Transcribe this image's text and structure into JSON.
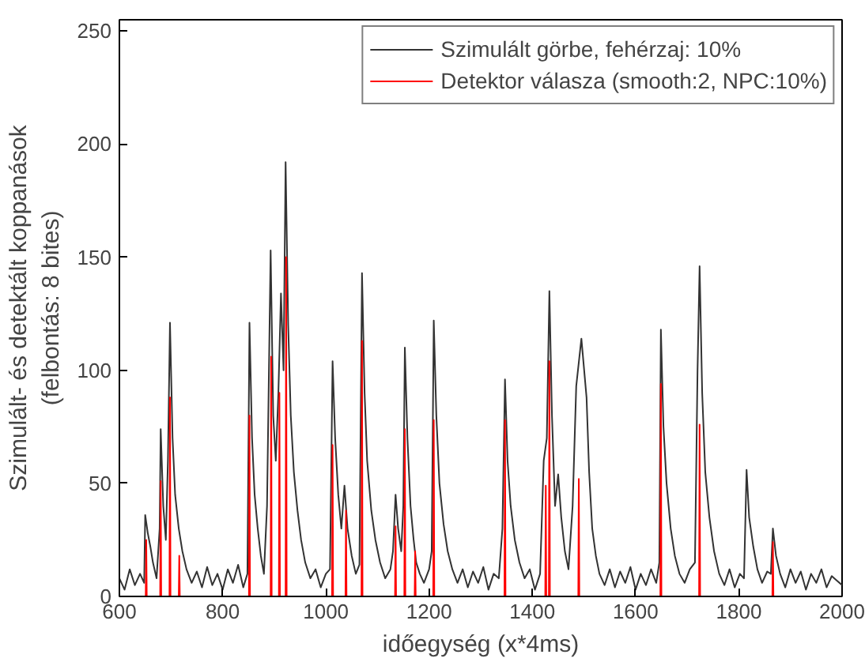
{
  "chart_data": {
    "type": "line",
    "xlabel": "időegység (x*4ms)",
    "ylabel": "Szimulált- és detektált koppanások\n(felbontás: 8 bites)",
    "xlim": [
      600,
      2000
    ],
    "ylim": [
      0,
      255
    ],
    "xticks": [
      600,
      800,
      1000,
      1200,
      1400,
      1600,
      1800,
      2000
    ],
    "yticks": [
      0,
      50,
      100,
      150,
      200,
      250
    ],
    "grid": false,
    "legend": "top right",
    "marker": "none",
    "line_style": "solid",
    "series": [
      {
        "name": "Szimulált görbe, fehérzaj: 10%",
        "color": "#333333",
        "x": [
          600,
          610,
          620,
          630,
          640,
          648,
          650,
          655,
          660,
          665,
          672,
          678,
          680,
          685,
          690,
          694,
          698,
          703,
          708,
          715,
          722,
          730,
          740,
          750,
          760,
          770,
          780,
          790,
          800,
          810,
          820,
          830,
          840,
          848,
          852,
          857,
          862,
          868,
          874,
          880,
          886,
          893,
          898,
          903,
          908,
          913,
          918,
          922,
          927,
          932,
          938,
          945,
          952,
          960,
          970,
          980,
          990,
          1000,
          1008,
          1013,
          1018,
          1024,
          1030,
          1036,
          1042,
          1050,
          1058,
          1065,
          1070,
          1075,
          1080,
          1088,
          1096,
          1105,
          1115,
          1125,
          1130,
          1135,
          1140,
          1146,
          1150,
          1153,
          1158,
          1164,
          1170,
          1175,
          1182,
          1190,
          1200,
          1205,
          1209,
          1214,
          1220,
          1228,
          1236,
          1245,
          1255,
          1265,
          1275,
          1285,
          1295,
          1305,
          1315,
          1325,
          1335,
          1342,
          1347,
          1352,
          1358,
          1366,
          1375,
          1385,
          1395,
          1405,
          1415,
          1422,
          1428,
          1433,
          1438,
          1444,
          1450,
          1456,
          1463,
          1470,
          1478,
          1485,
          1495,
          1505,
          1510,
          1516,
          1523,
          1530,
          1540,
          1550,
          1560,
          1570,
          1580,
          1590,
          1600,
          1610,
          1620,
          1630,
          1640,
          1646,
          1649,
          1654,
          1660,
          1668,
          1676,
          1685,
          1695,
          1705,
          1715,
          1720,
          1724,
          1729,
          1735,
          1743,
          1752,
          1762,
          1772,
          1782,
          1792,
          1802,
          1810,
          1815,
          1820,
          1828,
          1836,
          1845,
          1855,
          1862,
          1866,
          1872,
          1880,
          1890,
          1900,
          1910,
          1920,
          1930,
          1940,
          1950,
          1960,
          1970,
          1980,
          1990,
          2000
        ],
        "values": [
          8,
          3,
          12,
          5,
          10,
          6,
          36,
          28,
          22,
          15,
          8,
          30,
          74,
          40,
          25,
          60,
          121,
          70,
          45,
          30,
          20,
          12,
          6,
          11,
          4,
          13,
          5,
          10,
          3,
          12,
          6,
          14,
          4,
          10,
          121,
          70,
          45,
          30,
          18,
          10,
          40,
          153,
          80,
          60,
          90,
          134,
          100,
          192,
          120,
          80,
          55,
          38,
          25,
          15,
          8,
          12,
          4,
          10,
          12,
          104,
          70,
          45,
          30,
          49,
          30,
          18,
          10,
          14,
          143,
          90,
          60,
          38,
          25,
          15,
          8,
          12,
          20,
          45,
          30,
          20,
          40,
          110,
          70,
          40,
          25,
          15,
          10,
          6,
          12,
          20,
          122,
          80,
          50,
          32,
          20,
          12,
          6,
          12,
          4,
          11,
          6,
          13,
          3,
          10,
          8,
          30,
          96,
          60,
          40,
          25,
          15,
          8,
          12,
          3,
          10,
          60,
          70,
          135,
          80,
          40,
          54,
          35,
          20,
          12,
          40,
          93,
          114,
          88,
          55,
          30,
          18,
          10,
          5,
          12,
          4,
          11,
          6,
          13,
          3,
          10,
          5,
          12,
          6,
          15,
          118,
          75,
          50,
          30,
          18,
          10,
          6,
          12,
          15,
          100,
          146,
          90,
          55,
          35,
          20,
          10,
          5,
          12,
          4,
          10,
          8,
          56,
          35,
          22,
          12,
          6,
          11,
          10,
          30,
          18,
          10,
          4,
          12,
          6,
          11,
          3,
          10,
          6,
          12,
          4,
          9,
          7,
          5
        ]
      },
      {
        "name": "Detektor válasza (smooth:2, NPC:10%)",
        "color": "#ff0000",
        "x": [
          600,
          651,
          652,
          653,
          679,
          680,
          681,
          697,
          698,
          699,
          715,
          716,
          717,
          851,
          852,
          853,
          893,
          894,
          895,
          909,
          910,
          911,
          922,
          923,
          924,
          1012,
          1013,
          1014,
          1038,
          1039,
          1040,
          1069,
          1070,
          1071,
          1134,
          1135,
          1136,
          1152,
          1153,
          1154,
          1172,
          1173,
          1174,
          1208,
          1209,
          1210,
          1346,
          1347,
          1348,
          1425,
          1426,
          1427,
          1432,
          1433,
          1434,
          1489,
          1490,
          1491,
          1648,
          1649,
          1650,
          1723,
          1724,
          1725,
          1865,
          1866,
          1867
        ],
        "values": [
          0,
          0,
          25,
          0,
          0,
          51,
          0,
          0,
          88,
          0,
          0,
          18,
          0,
          0,
          80,
          0,
          0,
          106,
          0,
          0,
          90,
          0,
          0,
          150,
          0,
          0,
          67,
          0,
          0,
          38,
          0,
          0,
          113,
          0,
          0,
          31,
          0,
          0,
          74,
          0,
          0,
          20,
          0,
          0,
          78,
          0,
          0,
          78,
          0,
          0,
          49,
          0,
          0,
          104,
          0,
          0,
          52,
          0,
          0,
          94,
          0,
          0,
          76,
          0,
          0,
          24,
          0
        ]
      }
    ]
  }
}
